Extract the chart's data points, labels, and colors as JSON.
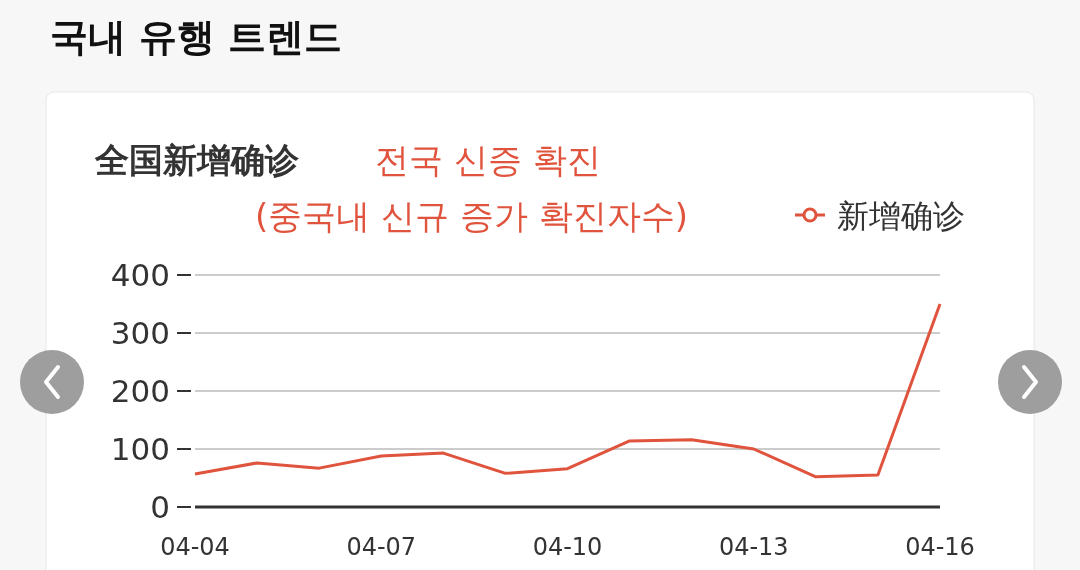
{
  "chart_data": {
    "type": "line",
    "title": "국내 유행 트렌드",
    "subtitle": "全国新增确诊",
    "annotations": [
      "전국 신증 확진",
      "(중국내 신규 증가 확진자수)"
    ],
    "categories": [
      "04-04",
      null,
      null,
      "04-07",
      null,
      null,
      "04-10",
      null,
      null,
      "04-13",
      null,
      null,
      "04-16"
    ],
    "series": [
      {
        "name": "新增确诊",
        "color": "#e0533c",
        "values": [
          57,
          76,
          67,
          88,
          93,
          58,
          66,
          114,
          116,
          100,
          52,
          55,
          350
        ]
      }
    ],
    "ylim": [
      0,
      400
    ],
    "yticks": [
      0,
      100,
      200,
      300,
      400
    ],
    "grid": "y",
    "legend": "top right"
  }
}
